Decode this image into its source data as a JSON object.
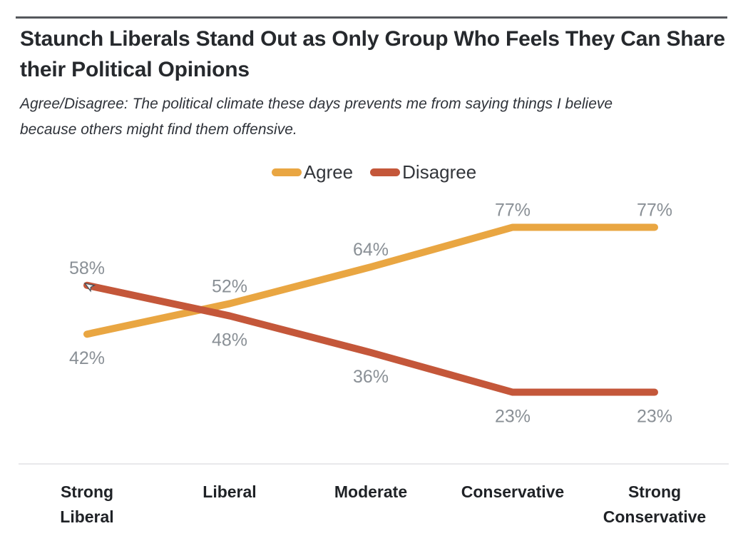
{
  "header": {
    "title": "Staunch Liberals Stand Out as Only Group Who Feels They Can Share their Political Opinions",
    "subtitle": "Agree/Disagree: The political climate these days prevents me from saying things I believe because others might find them offensive."
  },
  "colors": {
    "agree": "#E9A642",
    "disagree": "#C4573A",
    "data_label": "#8A9096",
    "title_text": "#26292D",
    "axis_label_text": "#1F2226",
    "top_rule": "#55585C",
    "baseline": "#E9E9EB",
    "background": "#FFFFFF"
  },
  "icons": {
    "mouse_cursor": "arrow-pointer"
  },
  "chart_data": {
    "type": "line",
    "title": "Staunch Liberals Stand Out as Only Group Who Feels They Can Share their Political Opinions",
    "subtitle": "Agree/Disagree: The political climate these days prevents me from saying things I believe because others might find them offensive.",
    "categories": [
      "Strong Liberal",
      "Liberal",
      "Moderate",
      "Conservative",
      "Strong Conservative"
    ],
    "category_lines": [
      [
        "Strong",
        "Liberal"
      ],
      [
        "Liberal"
      ],
      [
        "Moderate"
      ],
      [
        "Conservative"
      ],
      [
        "Strong",
        "Conservative"
      ]
    ],
    "series": [
      {
        "name": "Agree",
        "color": "#E9A642",
        "values": [
          42,
          52,
          64,
          77,
          77
        ],
        "labels": [
          "42%",
          "52%",
          "64%",
          "77%",
          "77%"
        ]
      },
      {
        "name": "Disagree",
        "color": "#C4573A",
        "values": [
          58,
          48,
          36,
          23,
          23
        ],
        "labels": [
          "58%",
          "48%",
          "36%",
          "23%",
          "23%"
        ]
      }
    ],
    "xlabel": "",
    "ylabel": "",
    "ylim": [
      0,
      100
    ],
    "grid": false,
    "axes_shown": false,
    "data_labels_shown": true,
    "legend_position": "top-center"
  }
}
